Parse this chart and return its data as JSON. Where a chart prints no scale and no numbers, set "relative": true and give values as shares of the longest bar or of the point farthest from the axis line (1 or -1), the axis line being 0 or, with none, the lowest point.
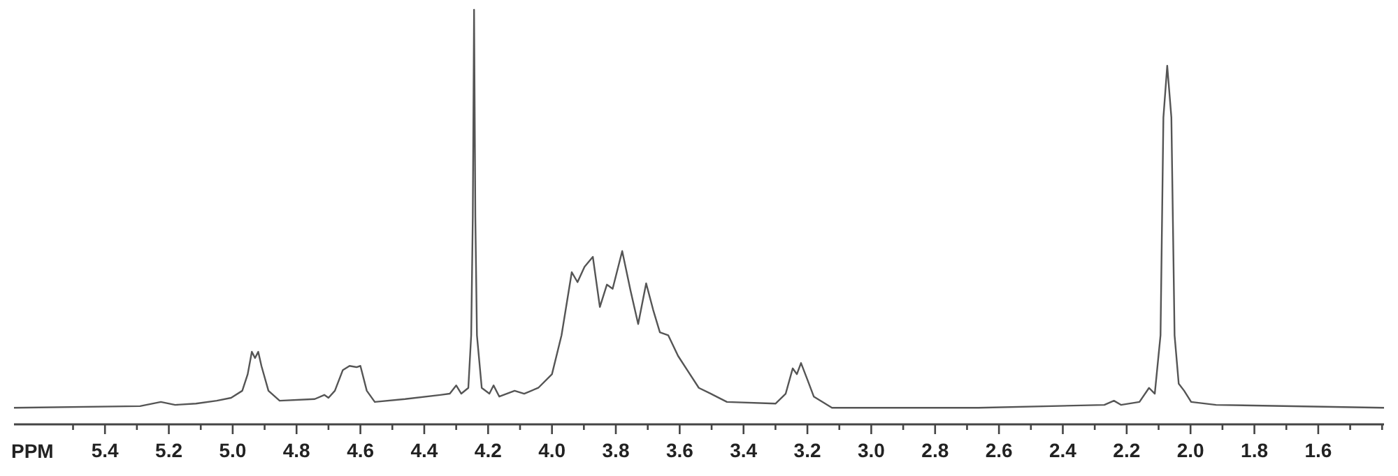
{
  "chart_data": {
    "type": "line",
    "xlabel": "PPM",
    "relative": true,
    "xlim": [
      5.685,
      1.394
    ],
    "xticks": [
      {
        "value": 5.5,
        "label": null
      },
      5.4,
      {
        "value": 5.3,
        "label": null
      },
      5.2,
      {
        "value": 5.1,
        "label": null
      },
      "5.0",
      {
        "value": 4.9,
        "label": null
      },
      4.8,
      {
        "value": 4.7,
        "label": null
      },
      4.6,
      {
        "value": 4.5,
        "label": null
      },
      4.4,
      {
        "value": 4.3,
        "label": null
      },
      4.2,
      {
        "value": 4.1,
        "label": null
      },
      "4.0",
      {
        "value": 3.9,
        "label": null
      },
      3.8,
      {
        "value": 3.7,
        "label": null
      },
      3.6,
      {
        "value": 3.5,
        "label": null
      },
      3.4,
      {
        "value": 3.3,
        "label": null
      },
      3.2,
      {
        "value": 3.1,
        "label": null
      },
      "3.0",
      {
        "value": 2.9,
        "label": null
      },
      2.8,
      {
        "value": 2.7,
        "label": null
      },
      2.6,
      {
        "value": 2.5,
        "label": null
      },
      2.4,
      {
        "value": 2.3,
        "label": null
      },
      2.2,
      {
        "value": 2.1,
        "label": null
      },
      "2.0",
      {
        "value": 1.9,
        "label": null
      },
      1.8,
      {
        "value": 1.7,
        "label": null
      },
      1.6,
      {
        "value": 1.5,
        "label": null
      },
      {
        "value": 1.4,
        "label": null
      }
    ],
    "tick_labels": "x",
    "grid": false,
    "marker": "none",
    "line_style": "solid",
    "series": [
      {
        "color": "#555555",
        "x": [
          5.685,
          5.29,
          5.225,
          5.18,
          5.115,
          5.05,
          5.005,
          4.97,
          4.953,
          4.94,
          4.93,
          4.92,
          4.91,
          4.888,
          4.853,
          4.743,
          4.713,
          4.7,
          4.68,
          4.655,
          4.634,
          4.612,
          4.6,
          4.58,
          4.555,
          4.46,
          4.35,
          4.32,
          4.3,
          4.284,
          4.262,
          4.253,
          4.248,
          4.244,
          4.24,
          4.235,
          4.22,
          4.196,
          4.183,
          4.165,
          4.117,
          4.087,
          4.043,
          4.0,
          3.97,
          3.938,
          3.92,
          3.898,
          3.872,
          3.85,
          3.828,
          3.81,
          3.78,
          3.754,
          3.73,
          3.705,
          3.683,
          3.662,
          3.636,
          3.605,
          3.574,
          3.54,
          3.495,
          3.452,
          3.3,
          3.268,
          3.246,
          3.233,
          3.22,
          3.2,
          3.18,
          3.123,
          2.664,
          2.27,
          2.24,
          2.218,
          2.16,
          2.13,
          2.112,
          2.094,
          2.085,
          2.073,
          2.06,
          2.05,
          2.037,
          2.02,
          1.998,
          1.92,
          1.394
        ],
        "values": [
          0.04,
          0.044,
          0.054,
          0.047,
          0.05,
          0.057,
          0.064,
          0.081,
          0.121,
          0.175,
          0.16,
          0.175,
          0.141,
          0.081,
          0.057,
          0.061,
          0.071,
          0.064,
          0.081,
          0.131,
          0.141,
          0.138,
          0.141,
          0.081,
          0.054,
          0.061,
          0.071,
          0.074,
          0.094,
          0.074,
          0.088,
          0.215,
          0.5,
          1.0,
          0.5,
          0.215,
          0.088,
          0.074,
          0.094,
          0.067,
          0.081,
          0.074,
          0.088,
          0.121,
          0.215,
          0.367,
          0.343,
          0.38,
          0.404,
          0.283,
          0.337,
          0.327,
          0.418,
          0.323,
          0.242,
          0.34,
          0.276,
          0.222,
          0.215,
          0.165,
          0.128,
          0.088,
          0.071,
          0.054,
          0.05,
          0.074,
          0.135,
          0.121,
          0.148,
          0.108,
          0.067,
          0.04,
          0.04,
          0.047,
          0.057,
          0.047,
          0.054,
          0.088,
          0.074,
          0.215,
          0.74,
          0.865,
          0.74,
          0.215,
          0.098,
          0.081,
          0.054,
          0.047,
          0.04
        ]
      }
    ]
  }
}
